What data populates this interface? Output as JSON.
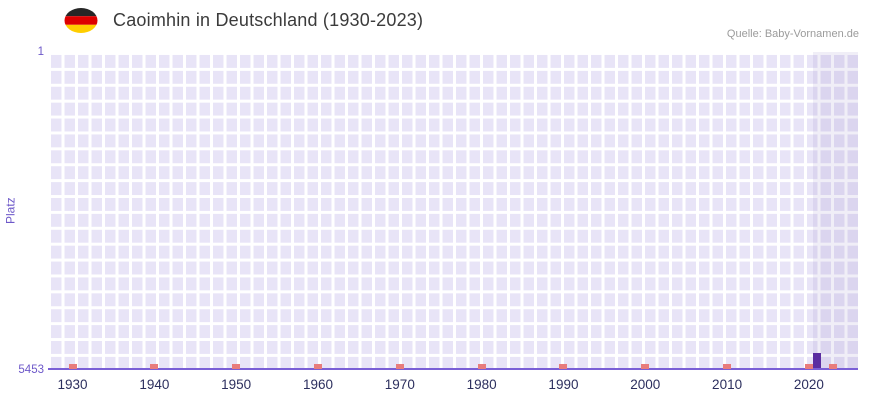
{
  "header": {
    "title": "Caoimhin in Deutschland (1930-2023)",
    "source": "Quelle: Baby-Vornamen.de",
    "flag_colors": [
      "#262626",
      "#dd0000",
      "#ffce00"
    ]
  },
  "chart_data": {
    "type": "bar",
    "title": "Caoimhin in Deutschland (1930-2023)",
    "ylabel": "Platz",
    "xlabel": "",
    "x_range": [
      1927,
      2026
    ],
    "x_ticks": [
      1930,
      1940,
      1950,
      1960,
      1970,
      1980,
      1990,
      2000,
      2010,
      2020
    ],
    "y_axis": {
      "top_label": "1",
      "bottom_label": "5453",
      "min": 1,
      "max": 5453,
      "inverted": true
    },
    "bars": [
      {
        "year": 2021,
        "rank": 5200
      }
    ],
    "unranked_years": [
      1930,
      1940,
      1950,
      1960,
      1970,
      1980,
      1990,
      2000,
      2010,
      2020,
      2023
    ],
    "highlight_band": {
      "start_year": 2020.5,
      "end_year": 2026
    },
    "grid": true,
    "legend": false,
    "colors": {
      "bar": "#5b2da1",
      "unranked_marker": "#e87c7c",
      "plot_background": "#e8e4f7",
      "grid_line": "#ffffff",
      "axis_line": "#7a5fd6",
      "highlight_band": "rgba(104,88,180,0.10)",
      "y_tick_label": "#6d58c9",
      "x_tick_label": "#2c2f5e",
      "title_text": "#3b3b3b",
      "source_text": "#9b9b9b"
    }
  }
}
